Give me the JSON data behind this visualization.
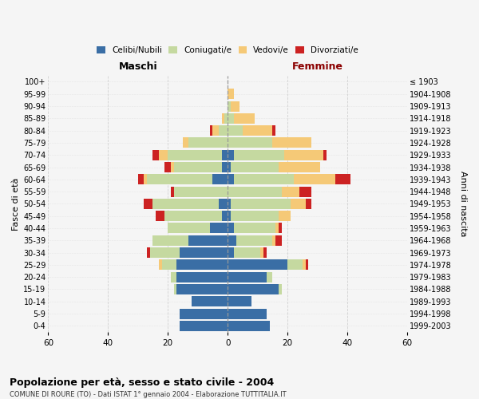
{
  "age_groups": [
    "0-4",
    "5-9",
    "10-14",
    "15-19",
    "20-24",
    "25-29",
    "30-34",
    "35-39",
    "40-44",
    "45-49",
    "50-54",
    "55-59",
    "60-64",
    "65-69",
    "70-74",
    "75-79",
    "80-84",
    "85-89",
    "90-94",
    "95-99",
    "100+"
  ],
  "birth_years": [
    "1999-2003",
    "1994-1998",
    "1989-1993",
    "1984-1988",
    "1979-1983",
    "1974-1978",
    "1969-1973",
    "1964-1968",
    "1959-1963",
    "1954-1958",
    "1949-1953",
    "1944-1948",
    "1939-1943",
    "1934-1938",
    "1929-1933",
    "1924-1928",
    "1919-1923",
    "1914-1918",
    "1909-1913",
    "1904-1908",
    "≤ 1903"
  ],
  "male": {
    "celibi": [
      16,
      16,
      12,
      17,
      17,
      17,
      16,
      13,
      6,
      2,
      3,
      0,
      5,
      2,
      2,
      0,
      0,
      0,
      0,
      0,
      0
    ],
    "coniugati": [
      0,
      0,
      0,
      1,
      2,
      5,
      10,
      12,
      14,
      19,
      22,
      18,
      22,
      16,
      18,
      13,
      3,
      1,
      0,
      0,
      0
    ],
    "vedovi": [
      0,
      0,
      0,
      0,
      0,
      1,
      0,
      0,
      0,
      0,
      0,
      0,
      1,
      1,
      3,
      2,
      2,
      1,
      0,
      0,
      0
    ],
    "divorziati": [
      0,
      0,
      0,
      0,
      0,
      0,
      1,
      0,
      0,
      3,
      3,
      1,
      2,
      2,
      2,
      0,
      1,
      0,
      0,
      0,
      0
    ]
  },
  "female": {
    "nubili": [
      14,
      13,
      8,
      17,
      13,
      20,
      2,
      3,
      2,
      1,
      1,
      0,
      2,
      1,
      2,
      0,
      0,
      0,
      0,
      0,
      0
    ],
    "coniugate": [
      0,
      0,
      0,
      1,
      2,
      5,
      9,
      12,
      14,
      16,
      20,
      18,
      20,
      16,
      17,
      15,
      5,
      2,
      1,
      0,
      0
    ],
    "vedove": [
      0,
      0,
      0,
      0,
      0,
      1,
      1,
      1,
      1,
      4,
      5,
      6,
      14,
      14,
      13,
      13,
      10,
      7,
      3,
      2,
      0
    ],
    "divorziate": [
      0,
      0,
      0,
      0,
      0,
      1,
      1,
      2,
      1,
      0,
      2,
      4,
      5,
      0,
      1,
      0,
      1,
      0,
      0,
      0,
      0
    ]
  },
  "colors": {
    "celibi": "#3a6ea5",
    "coniugati": "#c5d9a0",
    "vedovi": "#f5c977",
    "divorziati": "#cc2222"
  },
  "title": "Popolazione per età, sesso e stato civile - 2004",
  "subtitle": "COMUNE DI ROURE (TO) - Dati ISTAT 1° gennaio 2004 - Elaborazione TUTTITALIA.IT",
  "xlabel_left": "Maschi",
  "xlabel_right": "Femmine",
  "ylabel_left": "Fasce di età",
  "ylabel_right": "Anni di nascita",
  "xlim": 60,
  "background_color": "#f5f5f5",
  "grid_color": "#cccccc"
}
